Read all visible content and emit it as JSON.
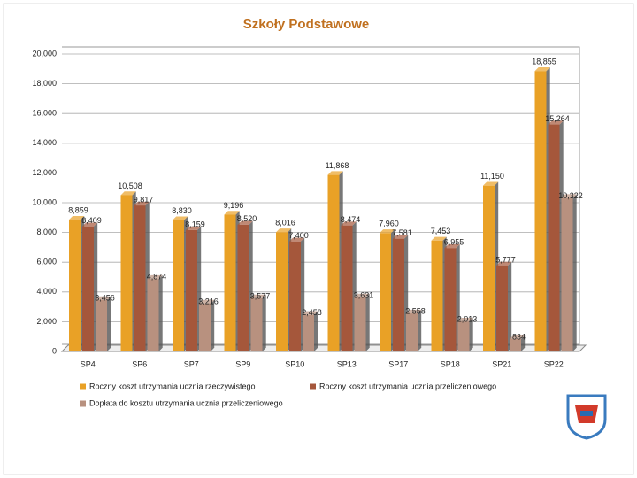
{
  "chart_data": {
    "type": "bar",
    "title": "Szkoły Podstawowe",
    "categories": [
      "SP4",
      "SP6",
      "SP7",
      "SP9",
      "SP10",
      "SP13",
      "SP17",
      "SP18",
      "SP21",
      "SP22"
    ],
    "series": [
      {
        "name": "Roczny koszt utrzymania ucznia rzeczywistego",
        "color": "#e9a126",
        "values": [
          8859,
          10508,
          8830,
          9196,
          8016,
          11868,
          7960,
          7453,
          11150,
          18855
        ],
        "value_labels": [
          "8,859",
          "10,508",
          "8,830",
          "9,196",
          "8,016",
          "11,868",
          "7,960",
          "7,453",
          "11,150",
          "18,855"
        ]
      },
      {
        "name": "Roczny koszt utrzymania ucznia przeliczeniowego",
        "color": "#a5573b",
        "values": [
          8409,
          9817,
          8159,
          8520,
          7400,
          8474,
          7581,
          6955,
          5777,
          15264
        ],
        "value_labels": [
          "8,409",
          "9,817",
          "8,159",
          "8,520",
          "7,400",
          "8,474",
          "7,581",
          "6,955",
          "5,777",
          "15,264"
        ]
      },
      {
        "name": "Dopłata do kosztu utrzymania ucznia przeliczeniowego",
        "color": "#b8917f",
        "values": [
          3456,
          4874,
          3216,
          3577,
          2458,
          3631,
          2558,
          2013,
          834,
          10322
        ],
        "value_labels": [
          "3,456",
          "4,874",
          "3,216",
          "3,577",
          "2,458",
          "3,631",
          "2,558",
          "2,013",
          "834",
          "10,322"
        ]
      }
    ],
    "ylim": [
      0,
      20000
    ],
    "yticks": [
      0,
      {
        "value": 2000,
        "label": "2,000"
      },
      {
        "value": 4000,
        "label": "4,000"
      },
      {
        "value": 6000,
        "label": "6,000"
      },
      {
        "value": 8000,
        "label": "8,000"
      },
      {
        "value": 10000,
        "label": "10,000"
      },
      {
        "value": 12000,
        "label": "12,000"
      },
      {
        "value": 14000,
        "label": "14,000"
      },
      {
        "value": 16000,
        "label": "16,000"
      },
      {
        "value": 18000,
        "label": "18,000"
      },
      {
        "value": 20000,
        "label": "20,000"
      }
    ],
    "grid": true
  }
}
